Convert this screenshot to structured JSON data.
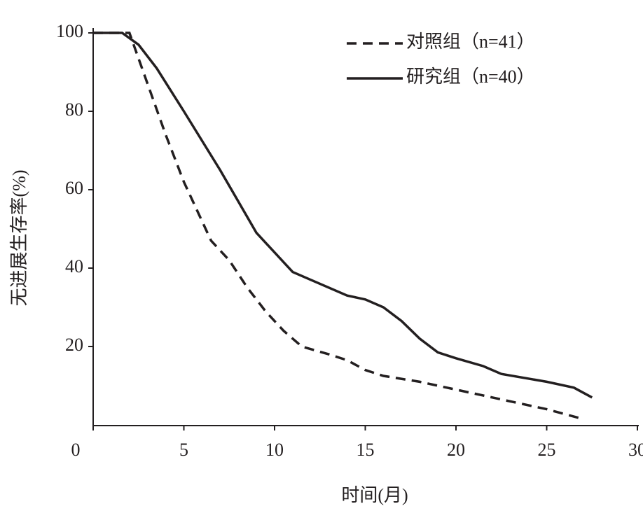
{
  "chart_data": {
    "type": "line",
    "x_label": "时间(月)",
    "y_label": "无进展生存率(%)",
    "xlim": [
      0,
      30
    ],
    "xticks": [
      0,
      5,
      10,
      15,
      20,
      25,
      30
    ],
    "ylim": [
      0,
      100
    ],
    "yticks": [
      20,
      40,
      60,
      80,
      100
    ],
    "legend": "top-right",
    "series": [
      {
        "name": "对照组（n=41）",
        "color": "#231f20",
        "dash": true,
        "x": [
          0,
          2,
          3,
          4,
          5,
          6,
          6.5,
          7.5,
          8.5,
          9.5,
          10.5,
          11.5,
          13,
          14,
          15,
          16,
          18,
          20,
          22,
          24,
          25,
          27
        ],
        "values": [
          100,
          100,
          87,
          74,
          62,
          52,
          47,
          42,
          35,
          29,
          24,
          20,
          18,
          16.5,
          14,
          12.5,
          11,
          9,
          7,
          5,
          4,
          1.5
        ]
      },
      {
        "name": "研究组（n=40）",
        "color": "#231f20",
        "dash": false,
        "x": [
          0,
          1.6,
          2.5,
          3.5,
          5,
          7,
          8,
          9,
          11,
          12,
          14,
          15,
          16,
          17,
          18,
          19,
          20,
          21.5,
          22.5,
          25,
          26.5,
          27.5
        ],
        "values": [
          100,
          100,
          97,
          91,
          80,
          65,
          57,
          49,
          39,
          37,
          33,
          32,
          30,
          26.5,
          22,
          18.5,
          17,
          15,
          13,
          11,
          9.5,
          7
        ]
      }
    ]
  }
}
